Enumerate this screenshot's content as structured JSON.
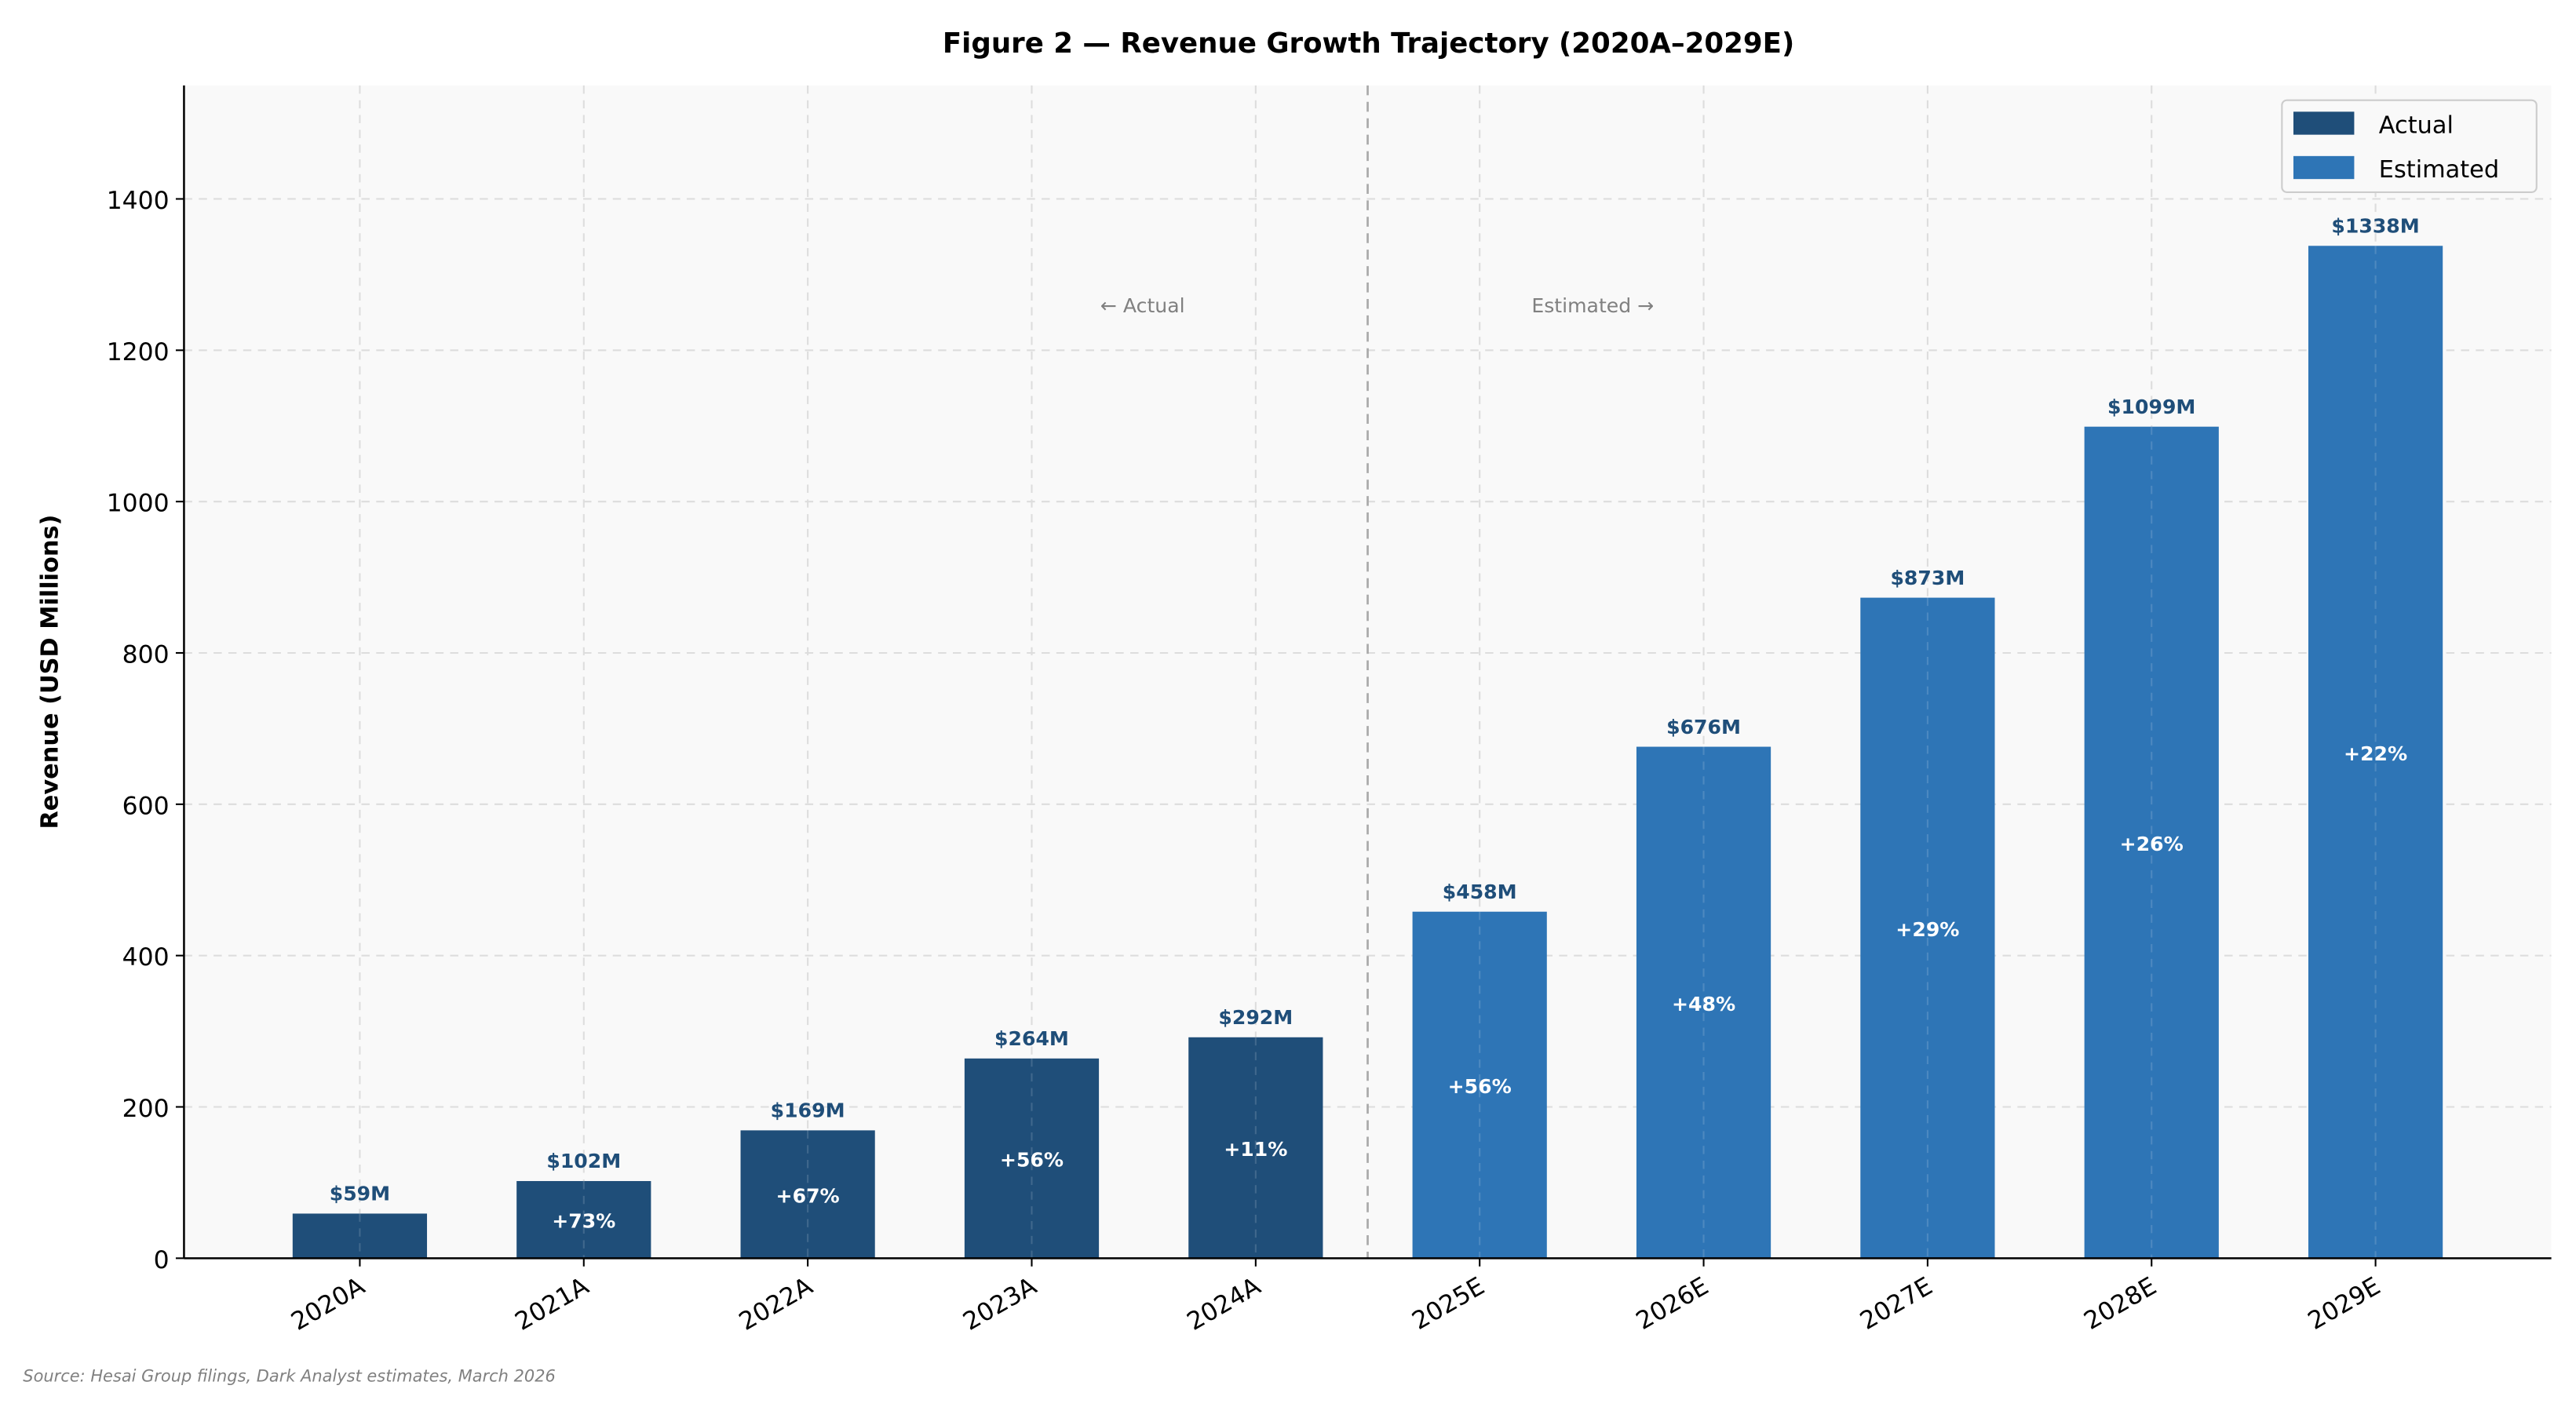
{
  "chart_data": {
    "type": "bar",
    "title": "Figure 2 — Revenue Growth Trajectory (2020A–2029E)",
    "xlabel": "",
    "ylabel": "Revenue (USD Millions)",
    "ylim": [
      0,
      1550
    ],
    "yticks": [
      0,
      200,
      400,
      600,
      800,
      1000,
      1200,
      1400
    ],
    "grid": true,
    "legend_placement": "top-right",
    "categories": [
      "2020A",
      "2021A",
      "2022A",
      "2023A",
      "2024A",
      "2025E",
      "2026E",
      "2027E",
      "2028E",
      "2029E"
    ],
    "values": [
      59,
      102,
      169,
      264,
      292,
      458,
      676,
      873,
      1099,
      1338
    ],
    "value_labels": [
      "$59M",
      "$102M",
      "$169M",
      "$264M",
      "$292M",
      "$458M",
      "$676M",
      "$873M",
      "$1099M",
      "$1338M"
    ],
    "growth_labels": [
      "",
      "+73%",
      "+67%",
      "+56%",
      "+11%",
      "+56%",
      "+48%",
      "+29%",
      "+26%",
      "+22%"
    ],
    "series_type": [
      "Actual",
      "Actual",
      "Actual",
      "Actual",
      "Actual",
      "Estimated",
      "Estimated",
      "Estimated",
      "Estimated",
      "Estimated"
    ],
    "legend": [
      {
        "name": "Actual",
        "color": "#1f4e79"
      },
      {
        "name": "Estimated",
        "color": "#2e75b6"
      }
    ],
    "divider_label_left": "← Actual",
    "divider_label_right": "Estimated →",
    "colors": {
      "actual": "#1f4e79",
      "estimated": "#2e75b6",
      "value_label": "#1f4e79",
      "background": "#f9f9f9"
    }
  },
  "source_note": "Source: Hesai Group filings, Dark Analyst estimates, March 2026"
}
